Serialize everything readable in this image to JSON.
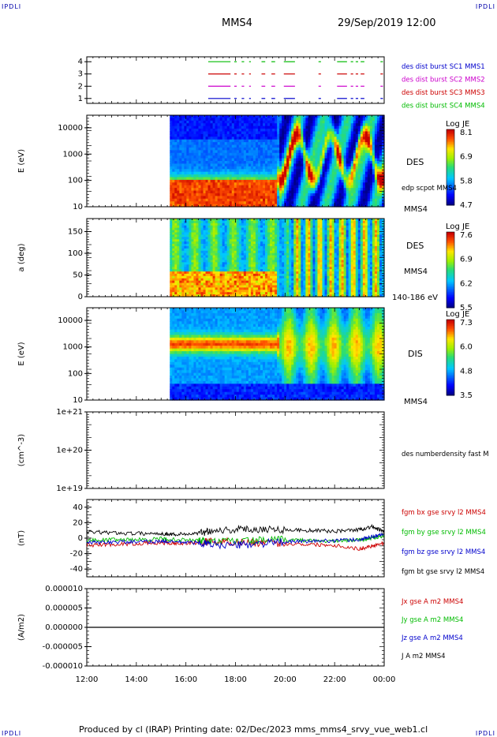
{
  "header": {
    "corner_tl": "IPDLI",
    "corner_tr": "IPDLI",
    "corner_bl": "IPDLI",
    "corner_br": "IPDLI",
    "spacecraft": "MMS4",
    "datetime": "29/Sep/2019 12:00"
  },
  "footer": {
    "text": "Produced by cl (IRAP)   Printing date: 02/Dec/2023   mms_mms4_srvy_vue_web1.cl"
  },
  "colors": {
    "mms1": "#0000cc",
    "mms2": "#cc00cc",
    "mms3": "#cc0000",
    "mms4": "#00bb00",
    "bt": "#000000"
  },
  "chart_data": [
    {
      "type": "line",
      "panel": "burst-availability",
      "y_ticks": [
        "1",
        "2",
        "3",
        "4"
      ],
      "ylim": [
        0.6,
        4.4
      ],
      "legend": [
        {
          "name": "des dist burst SC1 MMS1",
          "color": "#0000cc"
        },
        {
          "name": "des dist burst SC2 MMS2",
          "color": "#cc00cc"
        },
        {
          "name": "des dist burst SC3 MMS3",
          "color": "#cc0000"
        },
        {
          "name": "des dist burst SC4 MMS4",
          "color": "#00bb00"
        }
      ],
      "series": [
        {
          "name": "des dist burst SC4 MMS4",
          "level": 4,
          "color": "#00bb00",
          "segments": [
            [
              16.9,
              17.8
            ],
            [
              17.95,
              18.05
            ],
            [
              18.25,
              18.35
            ],
            [
              18.55,
              18.62
            ],
            [
              19.05,
              19.2
            ],
            [
              19.45,
              19.6
            ],
            [
              19.95,
              20.4
            ],
            [
              21.35,
              21.45
            ],
            [
              22.1,
              22.5
            ],
            [
              22.65,
              22.75
            ],
            [
              22.85,
              22.95
            ],
            [
              23.05,
              23.2
            ],
            [
              23.85,
              23.95
            ]
          ]
        },
        {
          "name": "des dist burst SC3 MMS3",
          "level": 3,
          "color": "#cc0000",
          "segments": [
            [
              16.9,
              17.8
            ],
            [
              17.95,
              18.05
            ],
            [
              18.25,
              18.35
            ],
            [
              18.55,
              18.62
            ],
            [
              19.05,
              19.2
            ],
            [
              19.45,
              19.6
            ],
            [
              19.95,
              20.4
            ],
            [
              21.35,
              21.45
            ],
            [
              22.1,
              22.5
            ],
            [
              22.65,
              22.75
            ],
            [
              22.85,
              22.95
            ],
            [
              23.05,
              23.2
            ],
            [
              23.85,
              23.95
            ]
          ]
        },
        {
          "name": "des dist burst SC2 MMS2",
          "level": 2,
          "color": "#cc00cc",
          "segments": [
            [
              16.9,
              17.8
            ],
            [
              17.95,
              18.05
            ],
            [
              18.25,
              18.35
            ],
            [
              18.55,
              18.62
            ],
            [
              19.05,
              19.2
            ],
            [
              19.45,
              19.6
            ],
            [
              19.95,
              20.4
            ],
            [
              21.35,
              21.45
            ],
            [
              22.1,
              22.5
            ],
            [
              22.65,
              22.75
            ],
            [
              22.85,
              22.95
            ],
            [
              23.05,
              23.2
            ],
            [
              23.85,
              23.95
            ]
          ]
        },
        {
          "name": "des dist burst SC1 MMS1",
          "level": 1,
          "color": "#0000cc",
          "segments": [
            [
              16.9,
              17.8
            ],
            [
              17.95,
              18.05
            ],
            [
              18.25,
              18.35
            ],
            [
              18.55,
              18.62
            ],
            [
              19.05,
              19.2
            ],
            [
              19.45,
              19.6
            ],
            [
              19.95,
              20.4
            ],
            [
              21.35,
              21.45
            ],
            [
              22.1,
              22.5
            ],
            [
              22.65,
              22.75
            ],
            [
              22.85,
              22.95
            ],
            [
              23.05,
              23.2
            ],
            [
              23.85,
              23.95
            ]
          ]
        }
      ]
    },
    {
      "type": "heatmap",
      "panel": "des-energy-spectrogram",
      "ylabel": "E (eV)",
      "y_scale": "log",
      "ylim": [
        10,
        30000
      ],
      "y_ticks": [
        "10",
        "100",
        "1000",
        "10000"
      ],
      "data_start_hour": 15.35,
      "label": "DES",
      "extra_label": "edp scpot MMS4",
      "sc_label": "MMS4",
      "colorbar": {
        "title": "Log JE",
        "ticks": [
          "8.1",
          "6.9",
          "5.8",
          "4.7"
        ],
        "min": 4.7,
        "max": 8.1
      }
    },
    {
      "type": "heatmap",
      "panel": "des-pitch-angle",
      "ylabel": "a (deg)",
      "ylim": [
        0,
        180
      ],
      "y_ticks": [
        "0",
        "50",
        "100",
        "150"
      ],
      "data_start_hour": 15.35,
      "label": "DES",
      "sc_label": "MMS4",
      "energy_range": "140-186 eV",
      "colorbar": {
        "title": "Log JE",
        "ticks": [
          "7.6",
          "6.9",
          "6.2",
          "5.5"
        ],
        "min": 5.5,
        "max": 7.6
      }
    },
    {
      "type": "heatmap",
      "panel": "dis-energy-spectrogram",
      "ylabel": "E (eV)",
      "y_scale": "log",
      "ylim": [
        10,
        30000
      ],
      "y_ticks": [
        "10",
        "100",
        "1000",
        "10000"
      ],
      "data_start_hour": 15.35,
      "label": "DIS",
      "sc_label": "MMS4",
      "colorbar": {
        "title": "Log JE",
        "ticks": [
          "7.3",
          "6.0",
          "4.8",
          "3.5"
        ],
        "min": 3.5,
        "max": 7.3
      }
    },
    {
      "type": "line",
      "panel": "density",
      "ylabel": "(cm^-3)",
      "y_scale": "log",
      "y_ticks": [
        "1e+19",
        "1e+20",
        "1e+21"
      ],
      "legend": [
        {
          "name": "des numberdensity fast M",
          "color": "#000000"
        }
      ],
      "series": []
    },
    {
      "type": "line",
      "panel": "magnetic-field",
      "ylabel": "(nT)",
      "ylim": [
        -50,
        50
      ],
      "y_ticks": [
        "-40",
        "-20",
        "0",
        "20",
        "40"
      ],
      "legend": [
        {
          "name": "fgm bx gse srvy l2 MMS4",
          "color": "#cc0000"
        },
        {
          "name": "fgm by gse srvy l2 MMS4",
          "color": "#00bb00"
        },
        {
          "name": "fgm bz gse srvy l2 MMS4",
          "color": "#0000cc"
        },
        {
          "name": "fgm bt gse srvy l2 MMS4",
          "color": "#000000"
        }
      ],
      "series": [
        {
          "name": "fgm bt gse srvy l2 MMS4",
          "color": "#000000",
          "x": [
            12.0,
            13.0,
            14.0,
            15.0,
            15.6,
            16.5,
            17.0,
            18.0,
            19.0,
            20.0,
            21.0,
            22.0,
            23.0,
            23.5,
            24.0
          ],
          "y": [
            8,
            7,
            6,
            6,
            5,
            6,
            10,
            11,
            12,
            11,
            10,
            9,
            11,
            15,
            8
          ]
        },
        {
          "name": "fgm by gse srvy l2 MMS4",
          "color": "#00bb00",
          "x": [
            12.0,
            13.0,
            14.0,
            15.0,
            15.6,
            16.5,
            17.0,
            18.0,
            19.0,
            20.0,
            21.0,
            22.0,
            23.0,
            23.5,
            24.0
          ],
          "y": [
            -3,
            -2,
            -2,
            -1,
            -2,
            -3,
            -5,
            -4,
            -3,
            -2,
            -3,
            -4,
            -2,
            0,
            3
          ]
        },
        {
          "name": "fgm bz gse srvy l2 MMS4",
          "color": "#0000cc",
          "x": [
            12.0,
            13.0,
            14.0,
            15.0,
            15.6,
            16.5,
            17.0,
            18.0,
            19.0,
            20.0,
            21.0,
            22.0,
            23.0,
            23.5,
            24.0
          ],
          "y": [
            -6,
            -5,
            -5,
            -4,
            -5,
            -6,
            -8,
            -9,
            -7,
            -5,
            -4,
            -3,
            -2,
            2,
            5
          ]
        },
        {
          "name": "fgm bx gse srvy l2 MMS4",
          "color": "#cc0000",
          "x": [
            12.0,
            13.0,
            14.0,
            15.0,
            15.6,
            16.5,
            17.0,
            18.0,
            19.0,
            20.0,
            21.0,
            22.0,
            23.0,
            23.5,
            24.0
          ],
          "y": [
            -9,
            -8,
            -7,
            -6,
            -7,
            -6,
            -4,
            -5,
            -6,
            -7,
            -8,
            -9,
            -14,
            -10,
            -6
          ]
        }
      ]
    },
    {
      "type": "line",
      "panel": "current-density",
      "ylabel": "(A/m2)",
      "ylim": [
        -1e-05,
        1e-05
      ],
      "y_ticks": [
        "-0.000010",
        "-0.000005",
        "0.000000",
        "0.000005",
        "0.000010"
      ],
      "legend": [
        {
          "name": "Jx gse A m2 MMS4",
          "color": "#cc0000"
        },
        {
          "name": "Jy gse A m2 MMS4",
          "color": "#00bb00"
        },
        {
          "name": "Jz gse A m2 MMS4",
          "color": "#0000cc"
        },
        {
          "name": "J A m2 MMS4",
          "color": "#000000"
        }
      ],
      "series": [
        {
          "name": "J A m2 MMS4",
          "color": "#000000",
          "x": [
            12.0,
            24.0
          ],
          "y": [
            0.0,
            0.0
          ]
        }
      ]
    }
  ],
  "x_axis": {
    "ticks": [
      "12:00",
      "14:00",
      "16:00",
      "18:00",
      "20:00",
      "22:00",
      "00:00"
    ],
    "xlim": [
      12,
      24
    ]
  }
}
